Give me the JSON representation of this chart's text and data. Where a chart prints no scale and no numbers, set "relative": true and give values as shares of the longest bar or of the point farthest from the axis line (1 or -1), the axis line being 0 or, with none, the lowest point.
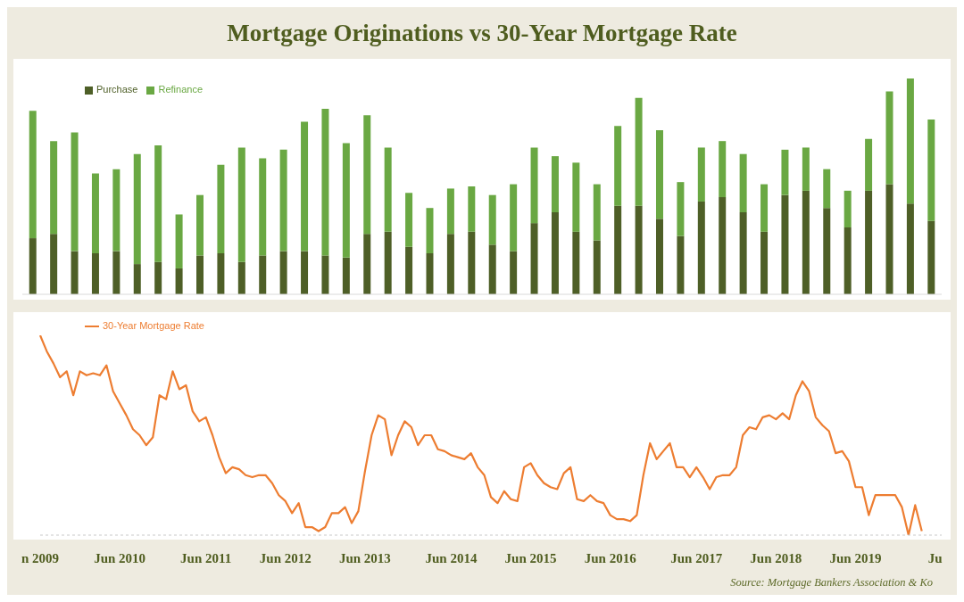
{
  "chart_data": [
    {
      "type": "bar",
      "title": "Mortgage Originations vs 30-Year Mortgage Rate",
      "relative": true,
      "stacked": true,
      "legend": "top left",
      "categories": [
        null,
        null,
        null,
        null,
        null,
        null,
        null,
        null,
        null,
        null,
        null,
        null,
        null,
        null,
        null,
        null,
        null,
        null,
        null,
        null,
        null,
        null,
        null,
        null,
        null,
        null,
        null,
        null,
        null,
        null,
        null,
        null,
        null,
        null,
        null,
        null,
        null,
        null,
        null,
        null,
        null,
        null,
        null,
        null
      ],
      "series": [
        {
          "name": "Purchase",
          "color": "#4e5f27",
          "values": [
            0.26,
            0.28,
            0.2,
            0.19,
            0.2,
            0.14,
            0.15,
            0.12,
            0.18,
            0.19,
            0.15,
            0.18,
            0.2,
            0.2,
            0.18,
            0.17,
            0.28,
            0.29,
            0.22,
            0.19,
            0.28,
            0.29,
            0.23,
            0.2,
            0.33,
            0.38,
            0.29,
            0.25,
            0.41,
            0.41,
            0.35,
            0.27,
            0.43,
            0.45,
            0.38,
            0.29,
            0.46,
            0.48,
            0.4,
            0.31,
            0.48,
            0.51,
            0.42,
            0.34
          ]
        },
        {
          "name": "Refinance",
          "color": "#6aa843",
          "values": [
            0.59,
            0.43,
            0.55,
            0.37,
            0.38,
            0.51,
            0.54,
            0.25,
            0.28,
            0.41,
            0.53,
            0.45,
            0.47,
            0.6,
            0.68,
            0.53,
            0.55,
            0.39,
            0.25,
            0.21,
            0.21,
            0.21,
            0.23,
            0.31,
            0.35,
            0.26,
            0.32,
            0.26,
            0.37,
            0.5,
            0.41,
            0.25,
            0.25,
            0.26,
            0.27,
            0.22,
            0.21,
            0.2,
            0.18,
            0.17,
            0.24,
            0.43,
            0.58,
            0.47
          ]
        }
      ]
    },
    {
      "type": "line",
      "relative": true,
      "legend": "top left",
      "annotations": [
        "Source: Mortgage Bankers Association & Ko"
      ],
      "categories": [
        "n 2009",
        null,
        null,
        null,
        null,
        null,
        null,
        null,
        null,
        null,
        null,
        null,
        "Jun 2010",
        null,
        null,
        null,
        null,
        null,
        null,
        null,
        null,
        null,
        null,
        null,
        null,
        "Jun 2011",
        null,
        null,
        null,
        null,
        null,
        null,
        null,
        null,
        null,
        null,
        null,
        "Jun 2012",
        null,
        null,
        null,
        null,
        null,
        null,
        null,
        null,
        null,
        null,
        null,
        "Jun 2013",
        null,
        null,
        null,
        null,
        null,
        null,
        null,
        null,
        null,
        null,
        null,
        null,
        "Jun 2014",
        null,
        null,
        null,
        null,
        null,
        null,
        null,
        null,
        null,
        null,
        null,
        "Jun 2015",
        null,
        null,
        null,
        null,
        null,
        null,
        null,
        null,
        null,
        null,
        null,
        "Jun 2016",
        null,
        null,
        null,
        null,
        null,
        null,
        null,
        null,
        null,
        null,
        null,
        null,
        "Jun 2017",
        null,
        null,
        null,
        null,
        null,
        null,
        null,
        null,
        null,
        null,
        null,
        "Jun 2018",
        null,
        null,
        null,
        null,
        null,
        null,
        null,
        null,
        null,
        null,
        null,
        "Jun 2019",
        null,
        null,
        null,
        null,
        null,
        null,
        null,
        null,
        null,
        null,
        null,
        "Ju",
        null
      ],
      "series": [
        {
          "name": "30-Year Mortgage Rate",
          "color": "#ed7d31",
          "values": [
            1.0,
            0.92,
            0.86,
            0.79,
            0.82,
            0.7,
            0.82,
            0.8,
            0.81,
            0.8,
            0.85,
            0.72,
            0.66,
            0.6,
            0.53,
            0.5,
            0.45,
            0.49,
            0.7,
            0.68,
            0.82,
            0.73,
            0.75,
            0.62,
            0.57,
            0.59,
            0.5,
            0.39,
            0.31,
            0.34,
            0.33,
            0.3,
            0.29,
            0.3,
            0.3,
            0.26,
            0.2,
            0.17,
            0.11,
            0.16,
            0.04,
            0.04,
            0.02,
            0.04,
            0.11,
            0.11,
            0.14,
            0.06,
            0.12,
            0.32,
            0.5,
            0.6,
            0.58,
            0.4,
            0.5,
            0.57,
            0.54,
            0.45,
            0.5,
            0.5,
            0.43,
            0.42,
            0.4,
            0.39,
            0.38,
            0.41,
            0.34,
            0.3,
            0.19,
            0.16,
            0.22,
            0.18,
            0.17,
            0.34,
            0.36,
            0.3,
            0.26,
            0.24,
            0.23,
            0.31,
            0.34,
            0.18,
            0.17,
            0.2,
            0.17,
            0.16,
            0.1,
            0.08,
            0.08,
            0.07,
            0.1,
            0.3,
            0.46,
            0.38,
            0.42,
            0.46,
            0.34,
            0.34,
            0.29,
            0.34,
            0.29,
            0.23,
            0.29,
            0.3,
            0.3,
            0.34,
            0.5,
            0.54,
            0.53,
            0.59,
            0.6,
            0.58,
            0.61,
            0.58,
            0.7,
            0.77,
            0.72,
            0.59,
            0.55,
            0.52,
            0.41,
            0.42,
            0.37,
            0.24,
            0.24,
            0.1,
            0.2,
            0.2,
            0.2,
            0.2,
            0.14,
            0,
            0.15,
            0.02,
            null,
            null,
            null
          ]
        }
      ]
    }
  ]
}
